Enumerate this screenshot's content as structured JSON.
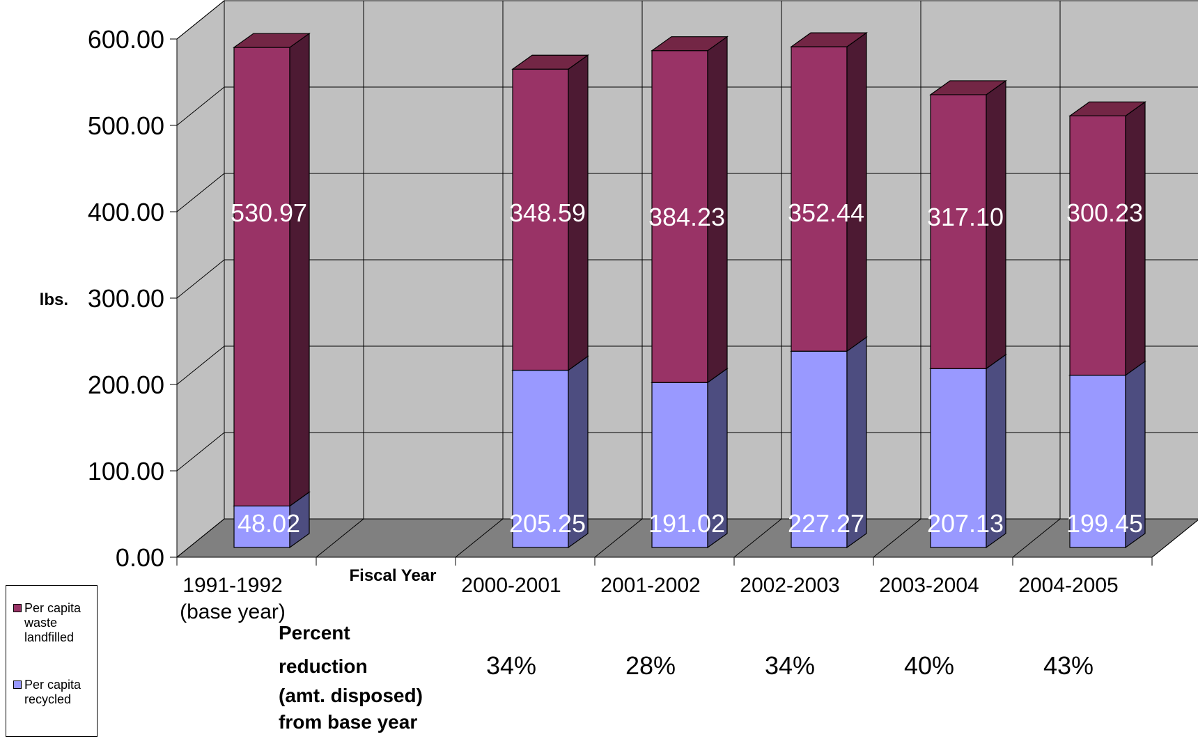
{
  "chart_data": {
    "type": "bar",
    "stacked": true,
    "three_d": true,
    "categories": [
      "1991-1992\n(base year)",
      "",
      "2000-2001",
      "2001-2002",
      "2002-2003",
      "2003-2004",
      "2004-2005"
    ],
    "series": [
      {
        "name": "Per capita recycled",
        "color": "#9999ff",
        "values": [
          48.02,
          null,
          205.25,
          191.02,
          227.27,
          207.13,
          199.45
        ]
      },
      {
        "name": "Per capita waste landfilled",
        "color": "#993366",
        "values": [
          530.97,
          null,
          348.59,
          384.23,
          352.44,
          317.1,
          300.23
        ]
      }
    ],
    "data_labels": {
      "recycled": [
        "48.02",
        "",
        "205.25",
        "191.02",
        "227.27",
        "207.13",
        "199.45"
      ],
      "landfilled": [
        "530.97",
        "",
        "348.59",
        "384.23",
        "352.44",
        "317.10",
        "300.23"
      ]
    },
    "y_ticks": [
      "0.00",
      "100.00",
      "200.00",
      "300.00",
      "400.00",
      "500.00",
      "600.00"
    ],
    "ylim": [
      0,
      600
    ],
    "ylabel": "lbs.",
    "xlabel": "Fiscal Year",
    "grid": true,
    "legend_position": "bottom-left",
    "percent_reduction": {
      "label_lines": [
        "Percent",
        "reduction",
        "(amt. disposed)",
        "from base year"
      ],
      "values": [
        "",
        "",
        "34%",
        "28%",
        "34%",
        "40%",
        "43%"
      ]
    }
  },
  "legend": {
    "landfilled": "Per capita waste landfilled",
    "recycled": "Per capita recycled"
  },
  "colors": {
    "landfilled_front": "#993366",
    "landfilled_side": "#4d1a33",
    "landfilled_top": "#732645",
    "recycled_front": "#9999ff",
    "recycled_side": "#4d4d80",
    "recycled_top": "#7373bf",
    "wall": "#c0c0c0",
    "floor": "#808080"
  }
}
